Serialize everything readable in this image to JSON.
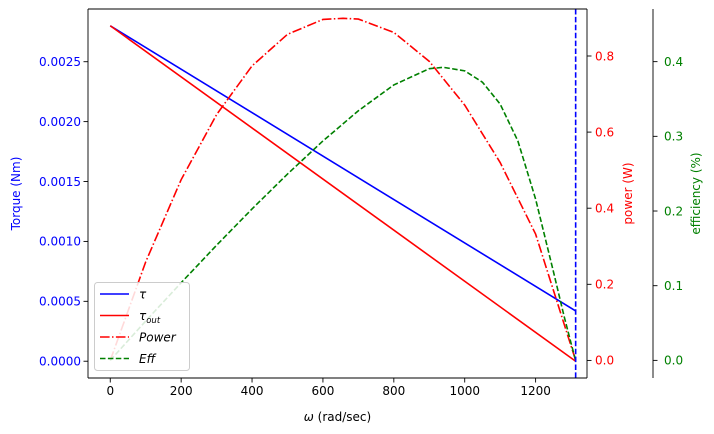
{
  "chart_data": {
    "type": "line",
    "xlabel_sym": "ω",
    "xlabel_rest": " (rad/sec)",
    "xlim": [
      -62.8,
      1345.0
    ],
    "x_ticks": [
      0,
      200,
      400,
      600,
      800,
      1000,
      1200
    ],
    "left_axis": {
      "label": "Torque (Nm)",
      "color": "#0000ff",
      "ylim": [
        -0.00014,
        0.00294
      ],
      "ticks": [
        0.0,
        0.0005,
        0.001,
        0.0015,
        0.002,
        0.0025
      ],
      "tick_labels": [
        "0.0000",
        "0.0005",
        "0.0010",
        "0.0015",
        "0.0020",
        "0.0025"
      ]
    },
    "mid_axis": {
      "label": "power (W)",
      "color": "#ff0000",
      "ylim": [
        -0.0462,
        0.9235
      ],
      "ticks": [
        0.0,
        0.2,
        0.4,
        0.6,
        0.8
      ],
      "tick_labels": [
        "0.0",
        "0.2",
        "0.4",
        "0.6",
        "0.8"
      ]
    },
    "right_axis": {
      "label": "efficiency (%)",
      "color": "#008000",
      "ylim": [
        -0.0236,
        0.4705
      ],
      "ticks": [
        0.0,
        0.1,
        0.2,
        0.3,
        0.4
      ],
      "tick_labels": [
        "0.0",
        "0.1",
        "0.2",
        "0.3",
        "0.4"
      ]
    },
    "series": [
      {
        "name": "τ",
        "axis": "left",
        "color": "#0000ff",
        "style": "solid",
        "x": [
          0,
          1313
        ],
        "y": [
          0.0028,
          0.00042
        ]
      },
      {
        "name": "τ_out",
        "axis": "left",
        "color": "#ff0000",
        "style": "solid",
        "x": [
          0,
          1313
        ],
        "y": [
          0.0028,
          0.0
        ]
      },
      {
        "name": "Power",
        "axis": "mid",
        "color": "#ff0000",
        "style": "dashdot",
        "x": [
          0,
          100,
          200,
          300,
          400,
          500,
          600,
          656.5,
          700,
          800,
          900,
          1000,
          1100,
          1200,
          1313
        ],
        "y": [
          0.0,
          0.259,
          0.475,
          0.646,
          0.774,
          0.857,
          0.896,
          0.899,
          0.897,
          0.862,
          0.786,
          0.671,
          0.52,
          0.332,
          0.0
        ]
      },
      {
        "name": "Eff",
        "axis": "right",
        "color": "#008000",
        "style": "dashed",
        "x": [
          0,
          100,
          200,
          300,
          400,
          500,
          600,
          700,
          800,
          900,
          940,
          1000,
          1050,
          1100,
          1150,
          1200,
          1250,
          1280,
          1300,
          1313
        ],
        "y": [
          0.0,
          0.0527,
          0.104,
          0.1542,
          0.2028,
          0.2495,
          0.2938,
          0.3343,
          0.3688,
          0.3906,
          0.3924,
          0.3877,
          0.3725,
          0.3432,
          0.2938,
          0.216,
          0.1194,
          0.0598,
          0.023,
          0.0
        ]
      }
    ],
    "vline": {
      "x": 1313,
      "color": "#0000ff",
      "style": "dashed"
    },
    "legend": {
      "position": "lower-left",
      "entries": [
        {
          "base": "τ",
          "sub": "",
          "color": "#0000ff",
          "style": "solid"
        },
        {
          "base": "τ",
          "sub": "out",
          "color": "#ff0000",
          "style": "solid"
        },
        {
          "base": "Power",
          "sub": "",
          "color": "#ff0000",
          "style": "dashdot"
        },
        {
          "base": "Eff",
          "sub": "",
          "color": "#008000",
          "style": "dashed"
        }
      ]
    }
  }
}
